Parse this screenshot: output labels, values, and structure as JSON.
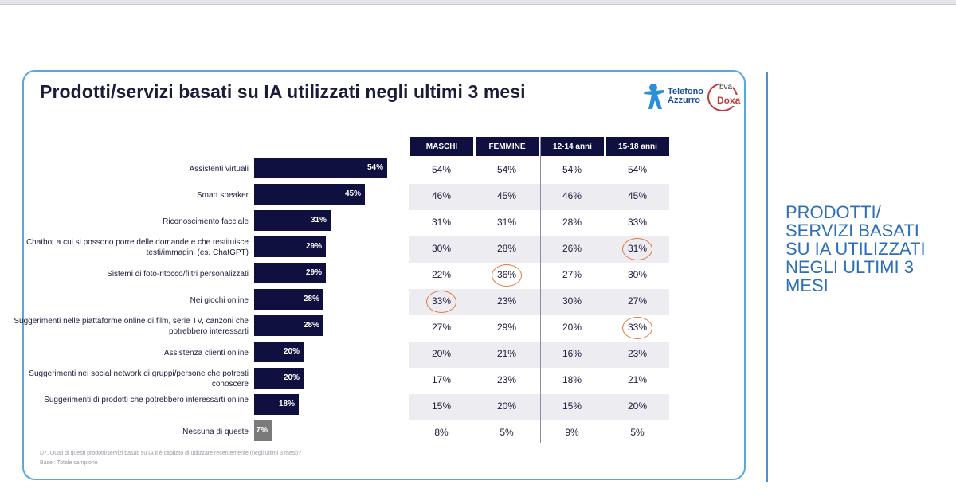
{
  "title": "Prodotti/servizi basati su IA utilizzati negli ultimi 3 mesi",
  "logos": {
    "telefono": "Telefono",
    "azzurro": "Azzurro",
    "bva": "bva",
    "doxa": "Doxa"
  },
  "side_title": "PRODOTTI/ SERVIZI BASATI SU IA UTILIZZATI NEGLI ULTIMI 3 MESI",
  "footnote": {
    "question": "D7. Quali di questi prodotti/servizi basati su IA ti è capitato di utilizzare recentemente (negli ultimi 3 mesi)?",
    "base": "Base : Totale campione"
  },
  "colors": {
    "bar": "#0f0f40",
    "bar_none": "#7a7a7a",
    "highlight_circle": "#e07a3c",
    "side_title": "#2c6fb8"
  },
  "chart_data": {
    "type": "bar",
    "orientation": "horizontal",
    "categories": [
      "Assistenti virtuali",
      "Smart speaker",
      "Riconoscimento facciale",
      "Chatbot a cui si possono porre delle domande e che restituisce testi/immagini (es. ChatGPT)",
      "Sistemi di foto-ritocco/filtri personalizzati",
      "Nei giochi online",
      "Suggerimenti nelle piattaforme online di film, serie TV, canzoni che potrebbero interessarti",
      "Assistenza clienti online",
      "Suggerimenti nei social network di gruppi/persone che potresti conoscere",
      "Suggerimenti di prodotti che potrebbero interessarti online",
      "Nessuna di queste"
    ],
    "values": [
      54,
      45,
      31,
      29,
      29,
      28,
      28,
      20,
      20,
      18,
      7
    ],
    "value_labels": [
      "54%",
      "45%",
      "31%",
      "29%",
      "29%",
      "28%",
      "28%",
      "20%",
      "20%",
      "18%",
      "7%"
    ],
    "table": {
      "columns": [
        "MASCHI",
        "FEMMINE",
        "12-14 anni",
        "15-18 anni"
      ],
      "rows": [
        [
          "54%",
          "54%",
          "54%",
          "54%"
        ],
        [
          "46%",
          "45%",
          "46%",
          "45%"
        ],
        [
          "31%",
          "31%",
          "28%",
          "33%"
        ],
        [
          "30%",
          "28%",
          "26%",
          "31%"
        ],
        [
          "22%",
          "36%",
          "27%",
          "30%"
        ],
        [
          "33%",
          "23%",
          "30%",
          "27%"
        ],
        [
          "27%",
          "29%",
          "20%",
          "33%"
        ],
        [
          "20%",
          "21%",
          "16%",
          "23%"
        ],
        [
          "17%",
          "23%",
          "18%",
          "21%"
        ],
        [
          "15%",
          "20%",
          "15%",
          "20%"
        ],
        [
          "8%",
          "5%",
          "9%",
          "5%"
        ]
      ],
      "highlighted": [
        [
          3,
          3
        ],
        [
          4,
          1
        ],
        [
          5,
          0
        ],
        [
          6,
          3
        ]
      ]
    }
  }
}
